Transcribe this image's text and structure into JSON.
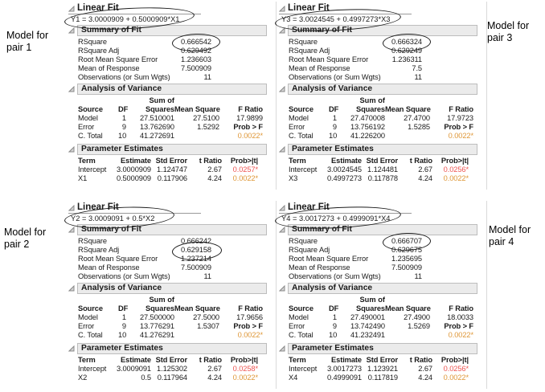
{
  "colors": {
    "p_red": "#ee5552",
    "p_orange": "#df9737",
    "header_bar_bg": "#ebebeb",
    "header_bar_border": "#bdbdbd"
  },
  "side_labels": [
    {
      "text": "Model for pair 1"
    },
    {
      "text": "Model for pair 3"
    },
    {
      "text": "Model for pair 2"
    },
    {
      "text": "Model for pair 4"
    }
  ],
  "annotations": {
    "circled": [
      "pair 1: equation",
      "pair 1: RSquare value",
      "pair 3: equation",
      "pair 3: RSquare value",
      "pair 2: equation",
      "pair 2: RSquare Adj value",
      "pair 4: equation",
      "pair 4: RSquare value"
    ]
  },
  "panels": [
    {
      "id": "pair-1",
      "title": "Linear Fit",
      "equation": "Y1 = 3.0000909 + 0.5000909*X1",
      "summary": {
        "title": "Summary of Fit",
        "rows": [
          [
            "RSquare",
            "0.666542"
          ],
          [
            "RSquare Adj",
            "0.629492"
          ],
          [
            "Root Mean Square Error",
            "1.236603"
          ],
          [
            "Mean of Response",
            "7.500909"
          ],
          [
            "Observations (or Sum Wgts)",
            "11"
          ]
        ]
      },
      "anova": {
        "title": "Analysis of Variance",
        "sum_of_label": "Sum of",
        "headers": [
          "Source",
          "DF",
          "Squares",
          "Mean Square",
          "F Ratio"
        ],
        "rows": [
          [
            "Model",
            "1",
            "27.510001",
            "27.5100",
            "17.9899"
          ],
          [
            "Error",
            "9",
            "13.762690",
            "1.5292",
            "Prob > F"
          ],
          [
            "C. Total",
            "10",
            "41.272691",
            "",
            "0.0022*"
          ]
        ]
      },
      "params": {
        "title": "Parameter Estimates",
        "headers": [
          "Term",
          "Estimate",
          "Std Error",
          "t Ratio",
          "Prob>|t|"
        ],
        "rows": [
          [
            "Intercept",
            "3.0000909",
            "1.124747",
            "2.67",
            "0.0257*"
          ],
          [
            "X1",
            "0.5000909",
            "0.117906",
            "4.24",
            "0.0022*"
          ]
        ]
      }
    },
    {
      "id": "pair-3",
      "title": "Linear Fit",
      "equation": "Y3 = 3.0024545 + 0.4997273*X3",
      "summary": {
        "title": "Summary of Fit",
        "rows": [
          [
            "RSquare",
            "0.666324"
          ],
          [
            "RSquare Adj",
            "0.629249"
          ],
          [
            "Root Mean Square Error",
            "1.236311"
          ],
          [
            "Mean of Response",
            "7.5"
          ],
          [
            "Observations (or Sum Wgts)",
            "11"
          ]
        ]
      },
      "anova": {
        "title": "Analysis of Variance",
        "sum_of_label": "Sum of",
        "headers": [
          "Source",
          "DF",
          "Squares",
          "Mean Square",
          "F Ratio"
        ],
        "rows": [
          [
            "Model",
            "1",
            "27.470008",
            "27.4700",
            "17.9723"
          ],
          [
            "Error",
            "9",
            "13.756192",
            "1.5285",
            "Prob > F"
          ],
          [
            "C. Total",
            "10",
            "41.226200",
            "",
            "0.0022*"
          ]
        ]
      },
      "params": {
        "title": "Parameter Estimates",
        "headers": [
          "Term",
          "Estimate",
          "Std Error",
          "t Ratio",
          "Prob>|t|"
        ],
        "rows": [
          [
            "Intercept",
            "3.0024545",
            "1.124481",
            "2.67",
            "0.0256*"
          ],
          [
            "X3",
            "0.4997273",
            "0.117878",
            "4.24",
            "0.0022*"
          ]
        ]
      }
    },
    {
      "id": "pair-2",
      "title": "Linear Fit",
      "equation": "Y2 = 3.0009091 + 0.5*X2",
      "summary": {
        "title": "Summary of Fit",
        "rows": [
          [
            "RSquare",
            "0.666242"
          ],
          [
            "RSquare Adj",
            "0.629158"
          ],
          [
            "Root Mean Square Error",
            "1.237214"
          ],
          [
            "Mean of Response",
            "7.500909"
          ],
          [
            "Observations (or Sum Wgts)",
            "11"
          ]
        ]
      },
      "anova": {
        "title": "Analysis of Variance",
        "sum_of_label": "Sum of",
        "headers": [
          "Source",
          "DF",
          "Squares",
          "Mean Square",
          "F Ratio"
        ],
        "rows": [
          [
            "Model",
            "1",
            "27.500000",
            "27.5000",
            "17.9656"
          ],
          [
            "Error",
            "9",
            "13.776291",
            "1.5307",
            "Prob > F"
          ],
          [
            "C. Total",
            "10",
            "41.276291",
            "",
            "0.0022*"
          ]
        ]
      },
      "params": {
        "title": "Parameter Estimates",
        "headers": [
          "Term",
          "Estimate",
          "Std Error",
          "t Ratio",
          "Prob>|t|"
        ],
        "rows": [
          [
            "Intercept",
            "3.0009091",
            "1.125302",
            "2.67",
            "0.0258*"
          ],
          [
            "X2",
            "0.5",
            "0.117964",
            "4.24",
            "0.0022*"
          ]
        ]
      }
    },
    {
      "id": "pair-4",
      "title": "Linear Fit",
      "equation": "Y4 = 3.0017273 + 0.4999091*X4",
      "summary": {
        "title": "Summary of Fit",
        "rows": [
          [
            "RSquare",
            "0.666707"
          ],
          [
            "RSquare Adj",
            "0.629675"
          ],
          [
            "Root Mean Square Error",
            "1.235695"
          ],
          [
            "Mean of Response",
            "7.500909"
          ],
          [
            "Observations (or Sum Wgts)",
            "11"
          ]
        ]
      },
      "anova": {
        "title": "Analysis of Variance",
        "sum_of_label": "Sum of",
        "headers": [
          "Source",
          "DF",
          "Squares",
          "Mean Square",
          "F Ratio"
        ],
        "rows": [
          [
            "Model",
            "1",
            "27.490001",
            "27.4900",
            "18.0033"
          ],
          [
            "Error",
            "9",
            "13.742490",
            "1.5269",
            "Prob > F"
          ],
          [
            "C. Total",
            "10",
            "41.232491",
            "",
            "0.0022*"
          ]
        ]
      },
      "params": {
        "title": "Parameter Estimates",
        "headers": [
          "Term",
          "Estimate",
          "Std Error",
          "t Ratio",
          "Prob>|t|"
        ],
        "rows": [
          [
            "Intercept",
            "3.0017273",
            "1.123921",
            "2.67",
            "0.0256*"
          ],
          [
            "X4",
            "0.4999091",
            "0.117819",
            "4.24",
            "0.0022*"
          ]
        ]
      }
    }
  ]
}
